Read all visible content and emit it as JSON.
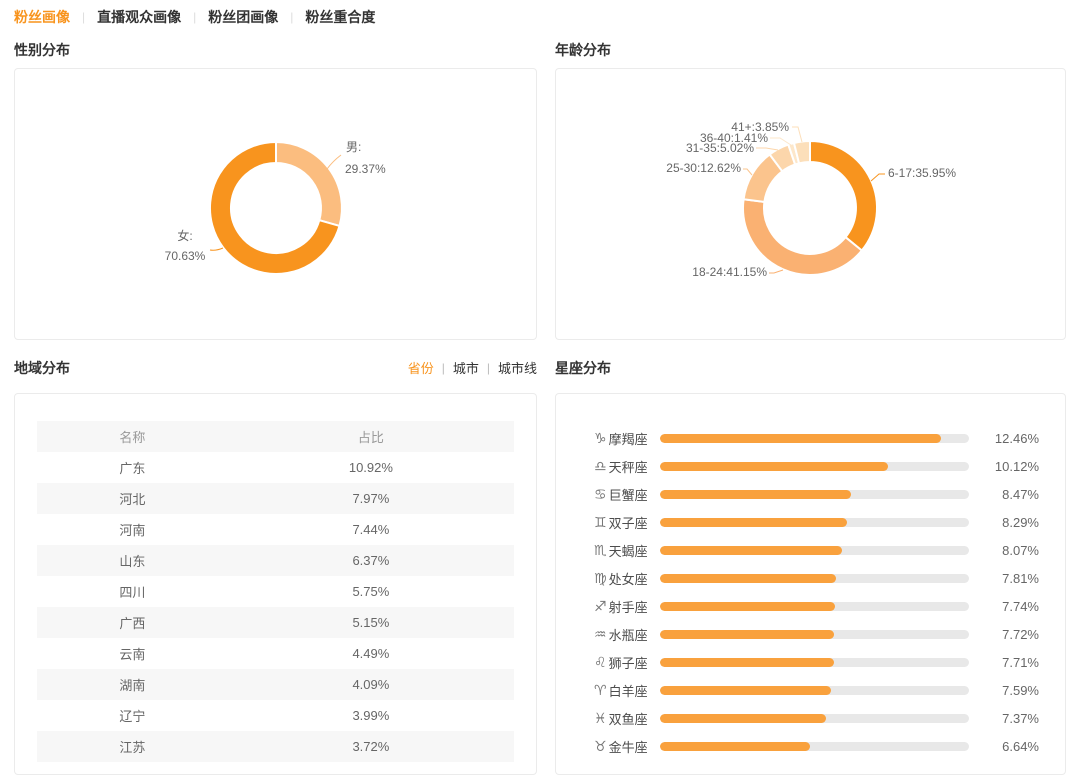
{
  "ui": {
    "separator": "|"
  },
  "colors": {
    "accent": "#F8941E",
    "light_orange": "#FBBD7F",
    "bar_orange": "#F9A13D",
    "track_gray": "#E8E8E8",
    "panel_border": "#EBEBEB"
  },
  "tabs": [
    {
      "key": "fan-profile",
      "label": "粉丝画像",
      "active": true
    },
    {
      "key": "live-audience-profile",
      "label": "直播观众画像",
      "active": false
    },
    {
      "key": "fan-club-profile",
      "label": "粉丝团画像",
      "active": false
    },
    {
      "key": "fan-overlap",
      "label": "粉丝重合度",
      "active": false
    }
  ],
  "sections": {
    "gender": "性别分布",
    "age": "年龄分布",
    "region": "地域分布",
    "zodiac": "星座分布"
  },
  "region_tabs": [
    {
      "key": "province",
      "label": "省份",
      "active": true
    },
    {
      "key": "city",
      "label": "城市",
      "active": false
    },
    {
      "key": "city-tier",
      "label": "城市线",
      "active": false
    }
  ],
  "chart_data": [
    {
      "id": "gender-distribution",
      "type": "pie",
      "title": "性别分布",
      "unit": "%",
      "segments": [
        {
          "key": "male",
          "name": "男",
          "value": 29.37,
          "color": "#FBBD7F",
          "label_lines": [
            "男:",
            "29.37%"
          ]
        },
        {
          "key": "female",
          "name": "女",
          "value": 70.63,
          "color": "#F8941E",
          "label_lines": [
            "女:",
            "70.63%"
          ]
        }
      ]
    },
    {
      "id": "age-distribution",
      "type": "pie",
      "title": "年龄分布",
      "unit": "%",
      "segments": [
        {
          "key": "age-6-17",
          "name": "6-17",
          "value": 35.95,
          "color": "#F8941E",
          "label": "6-17:35.95%"
        },
        {
          "key": "age-18-24",
          "name": "18-24",
          "value": 41.15,
          "color": "#FAB172",
          "label": "18-24:41.15%"
        },
        {
          "key": "age-25-30",
          "name": "25-30",
          "value": 12.62,
          "color": "#FBC48D",
          "label": "25-30:12.62%"
        },
        {
          "key": "age-31-35",
          "name": "31-35",
          "value": 5.02,
          "color": "#FCD6AB",
          "label": "31-35:5.02%"
        },
        {
          "key": "age-36-40",
          "name": "36-40",
          "value": 1.41,
          "color": "#FDE7CA",
          "label": "36-40:1.41%"
        },
        {
          "key": "age-41-plus",
          "name": "41+",
          "value": 3.85,
          "color": "#FCDFBA",
          "label": "41+:3.85%"
        }
      ]
    },
    {
      "id": "region-distribution",
      "type": "table",
      "title": "地域分布",
      "headers": [
        "名称",
        "占比"
      ],
      "rows": [
        {
          "name": "广东",
          "share": "10.92%"
        },
        {
          "name": "河北",
          "share": "7.97%"
        },
        {
          "name": "河南",
          "share": "7.44%"
        },
        {
          "name": "山东",
          "share": "6.37%"
        },
        {
          "name": "四川",
          "share": "5.75%"
        },
        {
          "name": "广西",
          "share": "5.15%"
        },
        {
          "name": "云南",
          "share": "4.49%"
        },
        {
          "name": "湖南",
          "share": "4.09%"
        },
        {
          "name": "辽宁",
          "share": "3.99%"
        },
        {
          "name": "江苏",
          "share": "3.72%"
        }
      ]
    },
    {
      "id": "zodiac-distribution",
      "type": "bar",
      "title": "星座分布",
      "axis_max": 13.7,
      "bar_color": "#F9A13D",
      "track_color": "#E8E8E8",
      "categories": [
        {
          "icon": "♑",
          "icon_name": "capricorn-icon",
          "label": "摩羯座",
          "value": 12.46,
          "display": "12.46%"
        },
        {
          "icon": "♎",
          "icon_name": "libra-icon",
          "label": "天秤座",
          "value": 10.12,
          "display": "10.12%"
        },
        {
          "icon": "♋",
          "icon_name": "cancer-icon",
          "label": "巨蟹座",
          "value": 8.47,
          "display": "8.47%"
        },
        {
          "icon": "♊",
          "icon_name": "gemini-icon",
          "label": "双子座",
          "value": 8.29,
          "display": "8.29%"
        },
        {
          "icon": "♏",
          "icon_name": "scorpio-icon",
          "label": "天蝎座",
          "value": 8.07,
          "display": "8.07%"
        },
        {
          "icon": "♍",
          "icon_name": "virgo-icon",
          "label": "处女座",
          "value": 7.81,
          "display": "7.81%"
        },
        {
          "icon": "♐",
          "icon_name": "sagittarius-icon",
          "label": "射手座",
          "value": 7.74,
          "display": "7.74%"
        },
        {
          "icon": "♒",
          "icon_name": "aquarius-icon",
          "label": "水瓶座",
          "value": 7.72,
          "display": "7.72%"
        },
        {
          "icon": "♌",
          "icon_name": "leo-icon",
          "label": "狮子座",
          "value": 7.71,
          "display": "7.71%"
        },
        {
          "icon": "♈",
          "icon_name": "aries-icon",
          "label": "白羊座",
          "value": 7.59,
          "display": "7.59%"
        },
        {
          "icon": "♓",
          "icon_name": "pisces-icon",
          "label": "双鱼座",
          "value": 7.37,
          "display": "7.37%"
        },
        {
          "icon": "♉",
          "icon_name": "taurus-icon",
          "label": "金牛座",
          "value": 6.64,
          "display": "6.64%"
        }
      ]
    }
  ]
}
